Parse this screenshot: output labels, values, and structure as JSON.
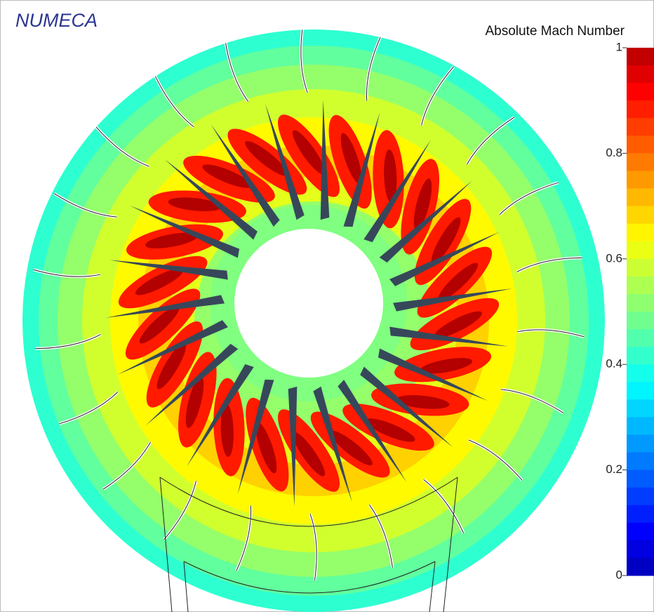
{
  "logo": "NUMECA",
  "colorbar": {
    "title": "Absolute Mach Number",
    "lim": [
      0,
      1
    ],
    "ticks": [
      0,
      0.2,
      0.4,
      0.6,
      0.8,
      1
    ]
  }
}
